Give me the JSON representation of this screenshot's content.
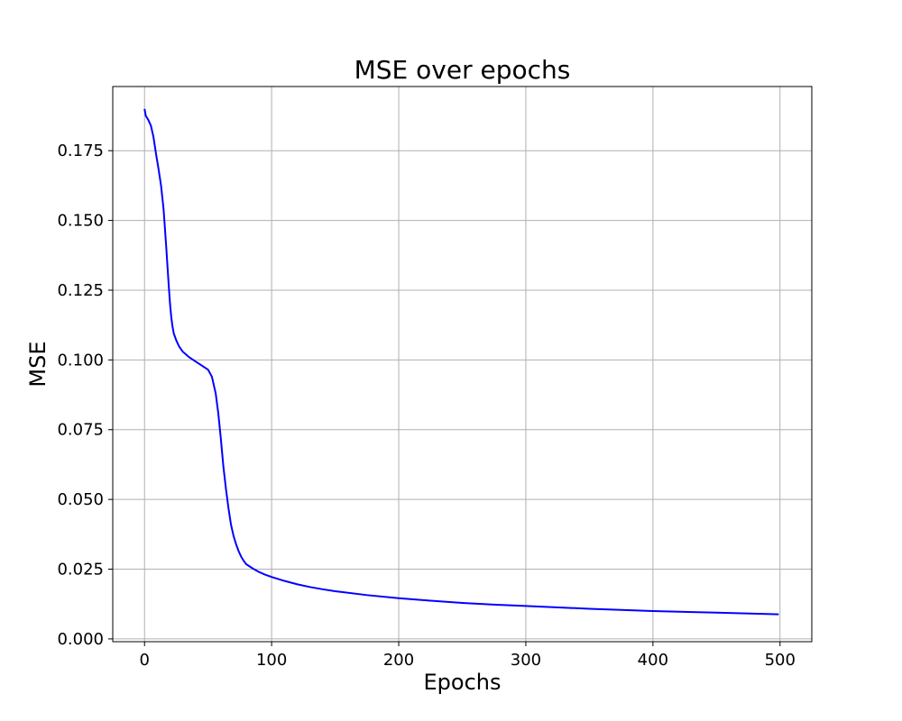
{
  "chart_data": {
    "type": "line",
    "title": "MSE over epochs",
    "xlabel": "Epochs",
    "ylabel": "MSE",
    "xlim": [
      -25,
      525
    ],
    "ylim": [
      -0.001,
      0.198
    ],
    "grid": true,
    "line_color": "#0000ff",
    "x_ticks": [
      0,
      100,
      200,
      300,
      400,
      500
    ],
    "x_tick_labels": [
      "0",
      "100",
      "200",
      "300",
      "400",
      "500"
    ],
    "y_ticks": [
      0.0,
      0.025,
      0.05,
      0.075,
      0.1,
      0.125,
      0.15,
      0.175
    ],
    "y_tick_labels": [
      "0.000",
      "0.025",
      "0.050",
      "0.075",
      "0.100",
      "0.125",
      "0.150",
      "0.175"
    ],
    "series": [
      {
        "x": [
          0,
          1,
          3,
          5,
          7,
          9,
          11,
          13,
          15,
          17,
          19,
          20,
          21,
          22,
          23,
          25,
          27,
          30,
          35,
          40,
          45,
          50,
          53,
          56,
          58,
          60,
          62,
          64,
          66,
          68,
          70,
          72,
          74,
          76,
          78,
          80,
          85,
          90,
          95,
          100,
          110,
          120,
          130,
          140,
          150,
          175,
          200,
          225,
          250,
          275,
          300,
          350,
          400,
          450,
          499
        ],
        "y": [
          0.19,
          0.1875,
          0.186,
          0.184,
          0.18,
          0.174,
          0.1685,
          0.1625,
          0.154,
          0.141,
          0.127,
          0.1205,
          0.1155,
          0.112,
          0.1095,
          0.107,
          0.105,
          0.103,
          0.101,
          0.0995,
          0.098,
          0.0965,
          0.094,
          0.088,
          0.081,
          0.072,
          0.062,
          0.054,
          0.047,
          0.041,
          0.037,
          0.034,
          0.0315,
          0.0295,
          0.028,
          0.0268,
          0.0253,
          0.024,
          0.023,
          0.0222,
          0.0208,
          0.0196,
          0.0186,
          0.0178,
          0.0171,
          0.0157,
          0.0146,
          0.0137,
          0.0129,
          0.0123,
          0.0118,
          0.0108,
          0.01,
          0.0094,
          0.0088
        ]
      }
    ]
  }
}
